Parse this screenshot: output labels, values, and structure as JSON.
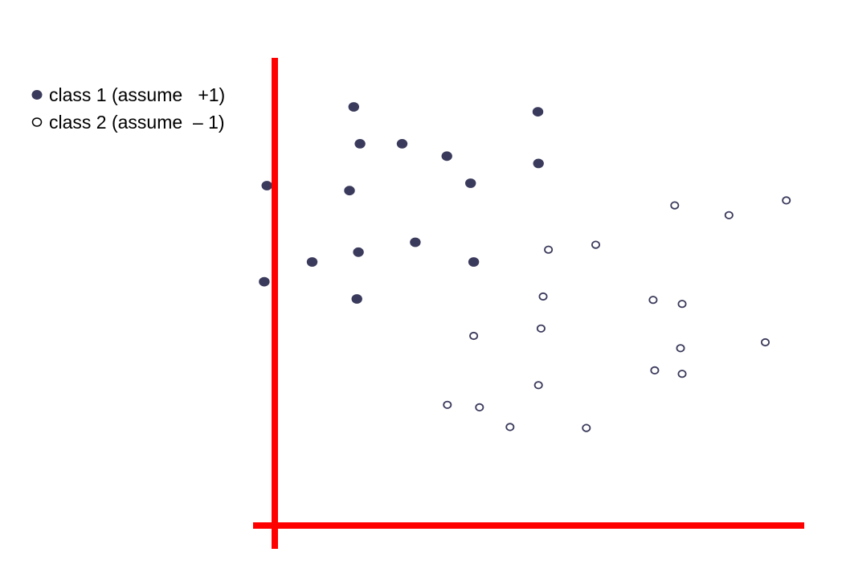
{
  "chart_data": {
    "type": "scatter",
    "title": "",
    "xlabel": "",
    "ylabel": "",
    "grid": false,
    "legend_position": "top-left",
    "axis_color": "#ff0000",
    "xlim": [
      0,
      10
    ],
    "ylim": [
      0,
      9
    ],
    "series": [
      {
        "name": "class 1 (assume   +1)",
        "marker": "filled-circle",
        "color": "#3a3a5c",
        "points": [
          {
            "x": 1.5,
            "y": 8.5
          },
          {
            "x": 5.0,
            "y": 8.4
          },
          {
            "x": 1.62,
            "y": 7.75
          },
          {
            "x": 2.42,
            "y": 7.75
          },
          {
            "x": 3.27,
            "y": 7.5
          },
          {
            "x": 5.01,
            "y": 7.35
          },
          {
            "x": 3.72,
            "y": 6.95
          },
          {
            "x": -0.15,
            "y": 6.9
          },
          {
            "x": 1.42,
            "y": 6.8
          },
          {
            "x": 2.67,
            "y": 5.75
          },
          {
            "x": 1.59,
            "y": 5.55
          },
          {
            "x": 0.71,
            "y": 5.35
          },
          {
            "x": 3.78,
            "y": 5.35
          },
          {
            "x": -0.2,
            "y": 4.95
          },
          {
            "x": 1.56,
            "y": 4.6
          }
        ]
      },
      {
        "name": "class 2 (assume  – 1)",
        "marker": "open-circle",
        "color": "#3a3a5c",
        "points": [
          {
            "x": 9.72,
            "y": 6.6
          },
          {
            "x": 7.6,
            "y": 6.5
          },
          {
            "x": 8.63,
            "y": 6.3
          },
          {
            "x": 6.1,
            "y": 5.7
          },
          {
            "x": 5.2,
            "y": 5.6
          },
          {
            "x": 5.1,
            "y": 4.65
          },
          {
            "x": 7.19,
            "y": 4.58
          },
          {
            "x": 7.74,
            "y": 4.5
          },
          {
            "x": 5.06,
            "y": 4.0
          },
          {
            "x": 3.78,
            "y": 3.85
          },
          {
            "x": 9.32,
            "y": 3.72
          },
          {
            "x": 7.71,
            "y": 3.6
          },
          {
            "x": 7.22,
            "y": 3.15
          },
          {
            "x": 7.74,
            "y": 3.08
          },
          {
            "x": 5.01,
            "y": 2.85
          },
          {
            "x": 3.28,
            "y": 2.45
          },
          {
            "x": 3.89,
            "y": 2.4
          },
          {
            "x": 4.47,
            "y": 2.0
          },
          {
            "x": 5.92,
            "y": 1.98
          }
        ]
      }
    ]
  }
}
